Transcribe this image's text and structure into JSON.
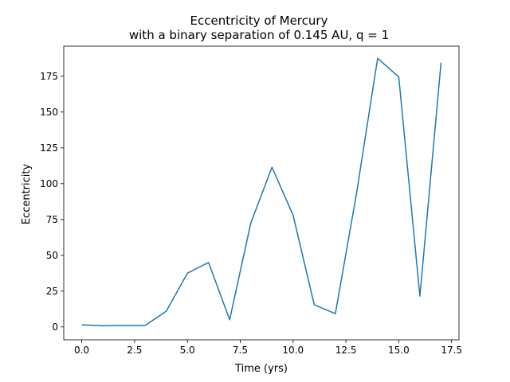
{
  "chart_data": {
    "type": "line",
    "title": "Eccentricity of Mercury",
    "subtitle": "with a binary separation of 0.145 AU, q = 1",
    "xlabel": "Time (yrs)",
    "ylabel": "Eccentricity",
    "xlim": [
      -0.85,
      17.85
    ],
    "ylim": [
      -9.0,
      196.0
    ],
    "x_ticks": [
      0.0,
      2.5,
      5.0,
      7.5,
      10.0,
      12.5,
      15.0,
      17.5
    ],
    "x_tick_labels": [
      "0.0",
      "2.5",
      "5.0",
      "7.5",
      "10.0",
      "12.5",
      "15.0",
      "17.5"
    ],
    "y_ticks": [
      0,
      25,
      50,
      75,
      100,
      125,
      150,
      175
    ],
    "y_tick_labels": [
      "0",
      "25",
      "50",
      "75",
      "100",
      "125",
      "150",
      "175"
    ],
    "grid": false,
    "series": [
      {
        "color": "#1f77b4",
        "x": [
          0,
          1,
          2,
          3,
          4,
          5,
          6,
          7,
          8,
          9,
          10,
          11,
          12,
          13,
          14,
          15,
          16,
          17
        ],
        "y": [
          1.5,
          0.8,
          1.0,
          1.0,
          11.0,
          37.5,
          45.0,
          5.0,
          72.5,
          111.5,
          78.0,
          15.5,
          9.2,
          93.0,
          187.5,
          174.5,
          21.5,
          184.5
        ]
      }
    ]
  }
}
